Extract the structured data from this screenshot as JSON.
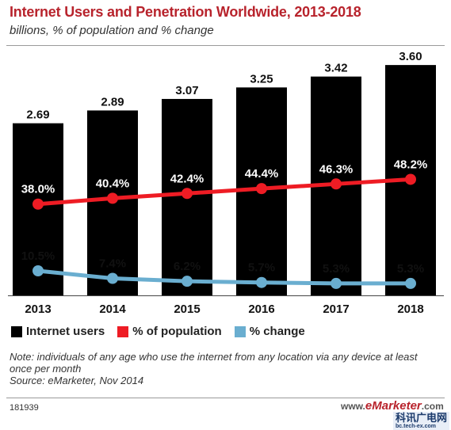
{
  "header": {
    "title": "Internet Users and Penetration Worldwide, 2013-2018",
    "subtitle": "billions, % of population and % change"
  },
  "chart_data": {
    "type": "bar",
    "categories": [
      "2013",
      "2014",
      "2015",
      "2016",
      "2017",
      "2018"
    ],
    "series": [
      {
        "name": "Internet users",
        "type": "bar",
        "color": "#000000",
        "values": [
          2.69,
          2.89,
          3.07,
          3.25,
          3.42,
          3.6
        ],
        "labels": [
          "2.69",
          "2.89",
          "3.07",
          "3.25",
          "3.42",
          "3.60"
        ]
      },
      {
        "name": "% of population",
        "type": "line",
        "color": "#ee1c24",
        "values": [
          38.0,
          40.4,
          42.4,
          44.4,
          46.3,
          48.2
        ],
        "labels": [
          "38.0%",
          "40.4%",
          "42.4%",
          "44.4%",
          "46.3%",
          "48.2%"
        ]
      },
      {
        "name": "% change",
        "type": "line",
        "color": "#6aaed0",
        "values": [
          10.5,
          7.4,
          6.2,
          5.7,
          5.3,
          5.3
        ],
        "labels": [
          "10.5%",
          "7.4%",
          "6.2%",
          "5.7%",
          "5.3%",
          "5.3%"
        ]
      }
    ],
    "legend_position": "bottom-left",
    "grid": false
  },
  "legend": [
    {
      "label": "Internet users",
      "color": "#000000"
    },
    {
      "label": "% of population",
      "color": "#ee1c24"
    },
    {
      "label": "% change",
      "color": "#6aaed0"
    }
  ],
  "footer": {
    "note": "Note: individuals of any age who use the internet from any location via any device at least once per month",
    "source": "Source: eMarketer, Nov 2014",
    "code": "181939"
  },
  "watermark": {
    "www": "www.",
    "brand": "eMarketer",
    "com": ".com",
    "site_cn": "科讯广电网",
    "site_url": "bc.tech-ex.com"
  }
}
